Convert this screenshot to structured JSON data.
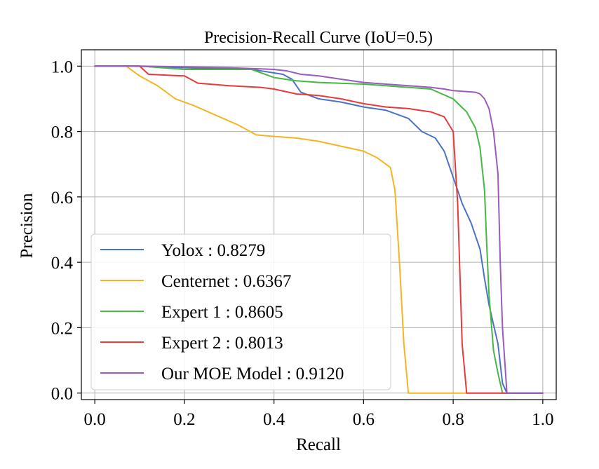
{
  "chart_data": {
    "type": "line",
    "title": "Precision-Recall Curve (IoU=0.5)",
    "xlabel": "Recall",
    "ylabel": "Precision",
    "xlim": [
      -0.03,
      1.03
    ],
    "ylim": [
      -0.02,
      1.05
    ],
    "x_ticks": [
      0.0,
      0.2,
      0.4,
      0.6,
      0.8,
      1.0
    ],
    "x_tick_labels": [
      "0.0",
      "0.2",
      "0.4",
      "0.6",
      "0.8",
      "1.0"
    ],
    "y_ticks": [
      0.0,
      0.2,
      0.4,
      0.6,
      0.8,
      1.0
    ],
    "y_tick_labels": [
      "0.0",
      "0.2",
      "0.4",
      "0.6",
      "0.8",
      "1.0"
    ],
    "grid": true,
    "legend_position": "lower-left",
    "series": [
      {
        "name": "Yolox : 0.8279",
        "color": "#4c72c4",
        "x": [
          0.0,
          0.08,
          0.2,
          0.35,
          0.42,
          0.44,
          0.46,
          0.5,
          0.55,
          0.6,
          0.65,
          0.7,
          0.73,
          0.76,
          0.78,
          0.8,
          0.82,
          0.84,
          0.86,
          0.87,
          0.88,
          0.9,
          0.91,
          0.92,
          1.0
        ],
        "y": [
          1.0,
          1.0,
          0.995,
          0.99,
          0.975,
          0.96,
          0.92,
          0.9,
          0.89,
          0.875,
          0.865,
          0.84,
          0.8,
          0.78,
          0.74,
          0.66,
          0.58,
          0.52,
          0.44,
          0.35,
          0.27,
          0.15,
          0.03,
          0.0,
          0.0
        ]
      },
      {
        "name": "Centernet : 0.6367",
        "color": "#f5b523",
        "x": [
          0.0,
          0.07,
          0.1,
          0.14,
          0.18,
          0.22,
          0.27,
          0.32,
          0.36,
          0.4,
          0.45,
          0.5,
          0.55,
          0.6,
          0.63,
          0.66,
          0.67,
          0.68,
          0.69,
          0.7,
          0.75,
          0.8,
          0.9,
          1.0
        ],
        "y": [
          1.0,
          1.0,
          0.97,
          0.94,
          0.9,
          0.88,
          0.85,
          0.82,
          0.79,
          0.785,
          0.78,
          0.77,
          0.755,
          0.74,
          0.72,
          0.69,
          0.62,
          0.4,
          0.15,
          0.0,
          0.0,
          0.0,
          0.0,
          0.0
        ]
      },
      {
        "name": "Expert 1 : 0.8605",
        "color": "#45b845",
        "x": [
          0.0,
          0.1,
          0.2,
          0.35,
          0.4,
          0.45,
          0.5,
          0.6,
          0.7,
          0.75,
          0.8,
          0.83,
          0.85,
          0.86,
          0.87,
          0.875,
          0.88,
          0.89,
          0.9,
          0.91,
          1.0
        ],
        "y": [
          1.0,
          1.0,
          0.99,
          0.99,
          0.965,
          0.955,
          0.95,
          0.945,
          0.935,
          0.93,
          0.9,
          0.86,
          0.81,
          0.75,
          0.62,
          0.45,
          0.3,
          0.13,
          0.06,
          0.0,
          0.0
        ]
      },
      {
        "name": "Expert 2 : 0.8013",
        "color": "#e83a3a",
        "x": [
          0.0,
          0.1,
          0.12,
          0.2,
          0.23,
          0.3,
          0.37,
          0.4,
          0.45,
          0.5,
          0.55,
          0.6,
          0.65,
          0.7,
          0.75,
          0.78,
          0.8,
          0.81,
          0.82,
          0.83,
          0.9,
          1.0
        ],
        "y": [
          1.0,
          1.0,
          0.975,
          0.97,
          0.948,
          0.94,
          0.935,
          0.93,
          0.915,
          0.91,
          0.9,
          0.885,
          0.875,
          0.87,
          0.86,
          0.845,
          0.8,
          0.58,
          0.15,
          0.0,
          0.0,
          0.0
        ]
      },
      {
        "name": "Our MOE Model : 0.9120",
        "color": "#9a5bbf",
        "x": [
          0.0,
          0.1,
          0.3,
          0.4,
          0.43,
          0.46,
          0.5,
          0.55,
          0.6,
          0.65,
          0.7,
          0.75,
          0.78,
          0.8,
          0.85,
          0.86,
          0.87,
          0.88,
          0.89,
          0.9,
          0.905,
          0.91,
          0.92,
          1.0
        ],
        "y": [
          1.0,
          1.0,
          0.995,
          0.99,
          0.985,
          0.975,
          0.97,
          0.96,
          0.95,
          0.945,
          0.94,
          0.935,
          0.93,
          0.925,
          0.92,
          0.915,
          0.9,
          0.87,
          0.8,
          0.67,
          0.4,
          0.2,
          0.0,
          0.0
        ]
      }
    ]
  }
}
